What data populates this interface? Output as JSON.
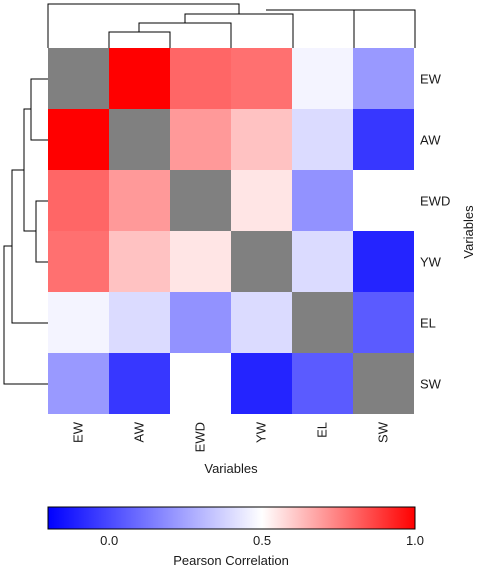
{
  "chart_data": {
    "type": "heatmap",
    "title": "",
    "xlabel": "Variables",
    "ylabel": "Variables",
    "columns": [
      "EW",
      "AW",
      "EWD",
      "YW",
      "EL",
      "SW"
    ],
    "rows": [
      "EW",
      "AW",
      "EWD",
      "YW",
      "EL",
      "SW"
    ],
    "values": [
      [
        null,
        1.0,
        0.8,
        0.78,
        0.47,
        0.22
      ],
      [
        1.0,
        null,
        0.7,
        0.62,
        0.4,
        -0.05
      ],
      [
        0.8,
        0.7,
        null,
        0.55,
        0.2,
        0.5
      ],
      [
        0.78,
        0.62,
        0.55,
        null,
        0.4,
        -0.1
      ],
      [
        0.47,
        0.4,
        0.2,
        0.4,
        null,
        0.05
      ],
      [
        0.22,
        -0.05,
        0.5,
        -0.1,
        0.05,
        null
      ]
    ],
    "diagonal_color": "#808080",
    "colorbar": {
      "label": "Pearson Correlation",
      "range": [
        -0.2,
        1.0
      ],
      "ticks": [
        "0.0",
        "0.5",
        "1.0"
      ],
      "tick_values": [
        0.0,
        0.5,
        1.0
      ],
      "colors": {
        "low": "#0000ff",
        "mid": "#ffffff",
        "high": "#ff0000"
      },
      "mid_value": 0.5
    },
    "dendrogram": true
  }
}
